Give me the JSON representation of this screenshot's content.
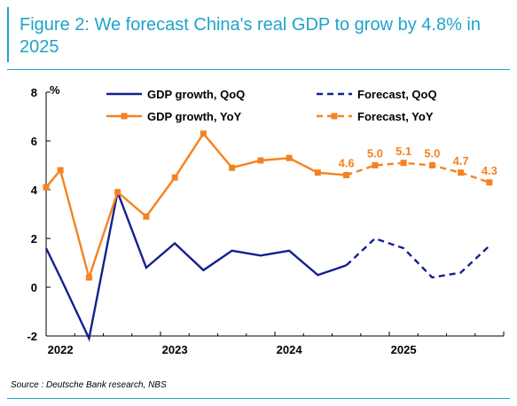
{
  "header": {
    "title": "Figure 2: We forecast China's real GDP to grow by 4.8% in 2025"
  },
  "footer": {
    "source": "Source : Deutsche Bank research, NBS"
  },
  "colors": {
    "navy": "#14208f",
    "orange": "#f5821f",
    "accent": "#1fa3c9"
  },
  "chart_data": {
    "type": "line",
    "ylabel": "%",
    "ylim": [
      -2,
      8
    ],
    "yticks": [
      -2,
      0,
      2,
      4,
      6,
      8
    ],
    "xlim": [
      2021.875,
      2025.875
    ],
    "xticks": [
      {
        "label": "2022",
        "x": 2022.0
      },
      {
        "label": "2023",
        "x": 2023.0
      },
      {
        "label": "2024",
        "x": 2024.0
      },
      {
        "label": "2025",
        "x": 2025.0
      }
    ],
    "grid": false,
    "legend_position": "top",
    "series": [
      {
        "name": "GDP growth, QoQ",
        "style": "solid",
        "marker": "none",
        "color": "#14208f",
        "points": [
          [
            2021.875,
            1.6
          ],
          [
            2022.0,
            0.4
          ],
          [
            2022.25,
            -2.1
          ],
          [
            2022.5,
            3.9
          ],
          [
            2022.75,
            0.8
          ],
          [
            2023.0,
            1.8
          ],
          [
            2023.25,
            0.7
          ],
          [
            2023.5,
            1.5
          ],
          [
            2023.75,
            1.3
          ],
          [
            2024.0,
            1.5
          ],
          [
            2024.25,
            0.5
          ],
          [
            2024.5,
            0.9
          ]
        ]
      },
      {
        "name": "Forecast, QoQ",
        "style": "dashed",
        "marker": "none",
        "color": "#14208f",
        "points": [
          [
            2024.5,
            0.9
          ],
          [
            2024.75,
            2.0
          ],
          [
            2025.0,
            1.6
          ],
          [
            2025.25,
            0.4
          ],
          [
            2025.5,
            0.6
          ],
          [
            2025.75,
            1.7
          ]
        ]
      },
      {
        "name": "GDP growth, YoY",
        "style": "solid",
        "marker": "square",
        "color": "#f5821f",
        "points": [
          [
            2021.875,
            4.1
          ],
          [
            2022.0,
            4.8
          ],
          [
            2022.25,
            0.4
          ],
          [
            2022.5,
            3.9
          ],
          [
            2022.75,
            2.9
          ],
          [
            2023.0,
            4.5
          ],
          [
            2023.25,
            6.3
          ],
          [
            2023.5,
            4.9
          ],
          [
            2023.75,
            5.2
          ],
          [
            2024.0,
            5.3
          ],
          [
            2024.25,
            4.7
          ],
          [
            2024.5,
            4.6
          ]
        ]
      },
      {
        "name": "Forecast, YoY",
        "style": "dashed",
        "marker": "square",
        "color": "#f5821f",
        "points": [
          [
            2024.5,
            4.6
          ],
          [
            2024.75,
            5.0
          ],
          [
            2025.0,
            5.1
          ],
          [
            2025.25,
            5.0
          ],
          [
            2025.5,
            4.7
          ],
          [
            2025.75,
            4.3
          ]
        ]
      }
    ],
    "annotations": [
      {
        "text": "4.6",
        "x": 2024.5,
        "y": 4.6
      },
      {
        "text": "5.0",
        "x": 2024.75,
        "y": 5.0
      },
      {
        "text": "5.1",
        "x": 2025.0,
        "y": 5.1
      },
      {
        "text": "5.0",
        "x": 2025.25,
        "y": 5.0
      },
      {
        "text": "4.7",
        "x": 2025.5,
        "y": 4.7
      },
      {
        "text": "4.3",
        "x": 2025.75,
        "y": 4.3
      }
    ]
  }
}
